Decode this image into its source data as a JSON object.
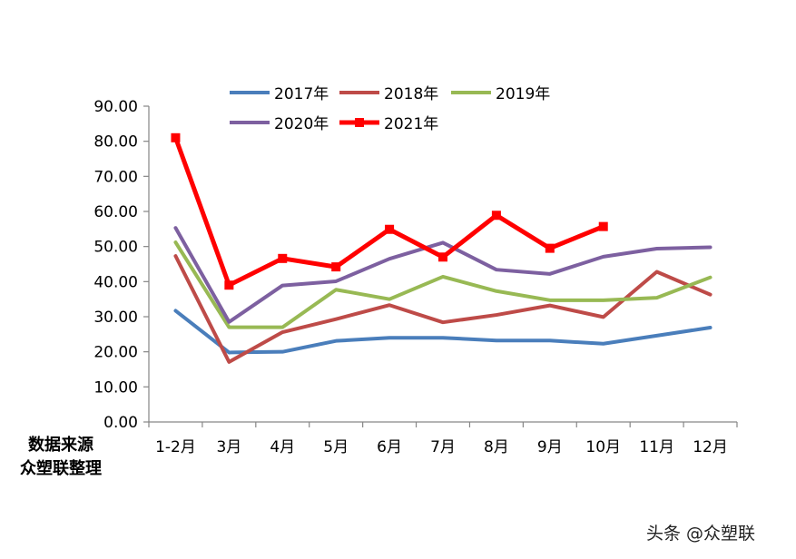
{
  "chart_data": {
    "type": "line",
    "categories": [
      "1-2月",
      "3月",
      "4月",
      "5月",
      "6月",
      "7月",
      "8月",
      "9月",
      "10月",
      "11月",
      "12月"
    ],
    "ylim": [
      0,
      90
    ],
    "yticks": [
      "0.00",
      "10.00",
      "20.00",
      "30.00",
      "40.00",
      "50.00",
      "60.00",
      "70.00",
      "80.00",
      "90.00"
    ],
    "legend_position": "top",
    "grid": false,
    "series": [
      {
        "name": "2017年",
        "color": "#4A7EBB",
        "values": [
          31.7,
          19.8,
          20.0,
          23.1,
          24.0,
          24.0,
          23.2,
          23.2,
          22.3,
          24.6,
          26.9
        ]
      },
      {
        "name": "2018年",
        "color": "#BE4B48",
        "values": [
          47.3,
          17.1,
          25.6,
          29.3,
          33.3,
          28.4,
          30.5,
          33.2,
          29.9,
          42.8,
          36.3
        ]
      },
      {
        "name": "2019年",
        "color": "#98B954",
        "values": [
          51.2,
          27.0,
          27.0,
          37.7,
          35.0,
          41.4,
          37.3,
          34.7,
          34.7,
          35.4,
          41.2
        ]
      },
      {
        "name": "2020年",
        "color": "#7D60A0",
        "values": [
          55.3,
          28.5,
          38.9,
          40.1,
          46.5,
          51.1,
          43.4,
          42.2,
          47.1,
          49.4,
          49.8
        ]
      },
      {
        "name": "2021年",
        "color": "#FF0000",
        "values": [
          81.0,
          39.0,
          46.6,
          44.2,
          54.9,
          47.0,
          58.9,
          49.5,
          55.7,
          null,
          null
        ],
        "marker": true
      }
    ]
  },
  "source": {
    "line1": "数据来源",
    "line2": "众塑联整理"
  },
  "watermark": "头条 @众塑联"
}
